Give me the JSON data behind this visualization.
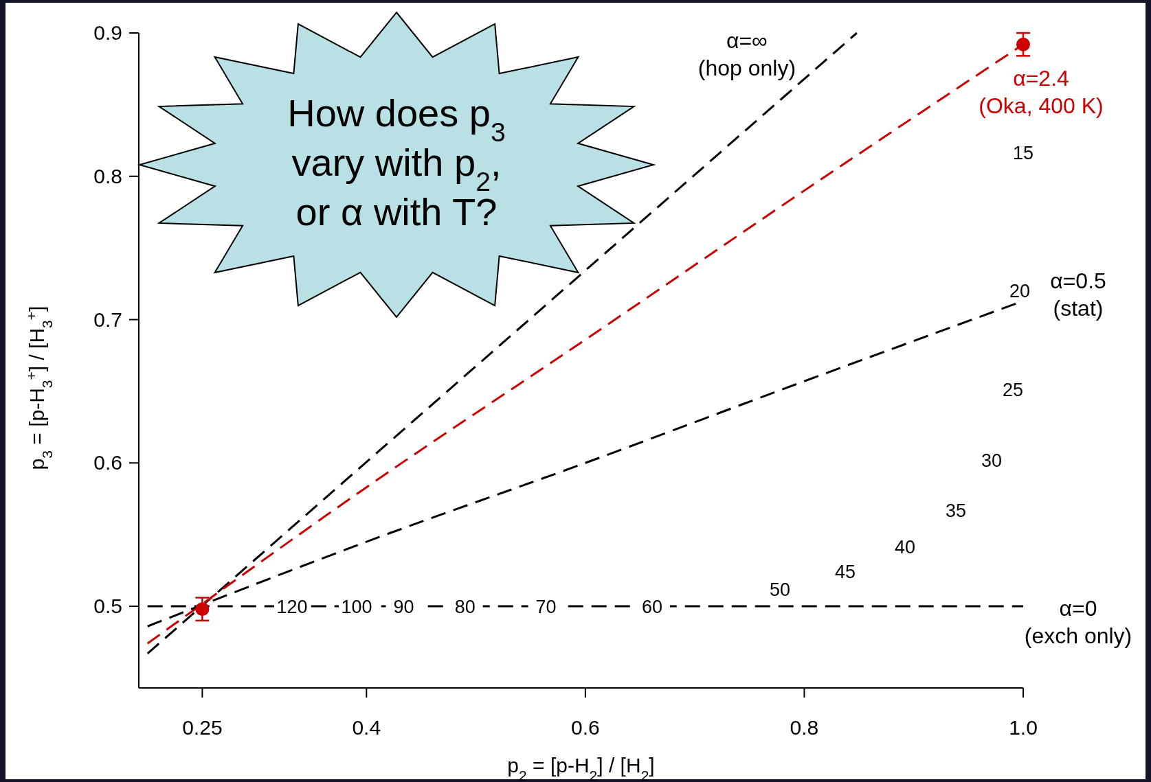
{
  "chart_data": {
    "type": "line",
    "xlabel": "p$_{2}$ = [p-H$_{2}$] / [H$_{2}$]",
    "ylabel": "p$_{3}$ = [p-H$_{3}$$^{+}$] / [H$_{3}$$^{+}$]",
    "xlim": [
      0.192,
      1.0
    ],
    "ylim": [
      0.443,
      0.9
    ],
    "xticks": [
      0.25,
      0.4,
      0.6,
      0.8,
      {
        "value": 1.0,
        "label": "1.0"
      }
    ],
    "yticks": [
      0.5,
      0.6,
      0.7,
      0.8,
      0.9
    ],
    "grid": false,
    "series": [
      {
        "name": "α=∞ (hop only)",
        "type": "line",
        "color": "#000000",
        "line_style": "dashed",
        "marker": "none",
        "x": [
          0.2,
          0.848
        ],
        "values": [
          0.467,
          0.9
        ]
      },
      {
        "name": "α=2.4 (Oka, 400 K)",
        "type": "line",
        "color": "#cc0000",
        "line_style": "dashed",
        "marker": "none",
        "x": [
          0.2,
          0.4,
          0.6,
          0.8,
          1.0
        ],
        "values": [
          0.474,
          0.583,
          0.686,
          0.79,
          0.892
        ]
      },
      {
        "name": "α=0.5 (stat)",
        "type": "line",
        "color": "#000000",
        "line_style": "dashed",
        "marker": "none",
        "x": [
          0.2,
          0.4,
          0.6,
          0.8,
          1.0
        ],
        "values": [
          0.486,
          0.545,
          0.6,
          0.657,
          0.713
        ]
      },
      {
        "name": "α=0 (exch only)",
        "type": "line",
        "color": "#000000",
        "line_style": "dashed",
        "marker": "none",
        "x": [
          0.2,
          1.0
        ],
        "values": [
          0.5,
          0.5
        ]
      },
      {
        "type": "scatter",
        "color": "#cc0000",
        "marker": "circle",
        "x": [
          0.25,
          1.0
        ],
        "values": [
          0.498,
          0.892
        ],
        "errors": [
          0.008,
          0.008
        ]
      }
    ],
    "annotations": [
      "How does p$_{3}$ vary with p$_{2}$, or α with T?",
      {
        "text": "120",
        "x": 0.332,
        "y": 0.5
      },
      {
        "text": "100",
        "x": 0.391,
        "y": 0.5
      },
      {
        "text": "90",
        "x": 0.434,
        "y": 0.5
      },
      {
        "text": "80",
        "x": 0.49,
        "y": 0.5
      },
      {
        "text": "70",
        "x": 0.564,
        "y": 0.5
      },
      {
        "text": "60",
        "x": 0.661,
        "y": 0.5
      },
      "50",
      "45",
      "40",
      "35",
      "30",
      "25",
      "20",
      "15"
    ]
  }
}
